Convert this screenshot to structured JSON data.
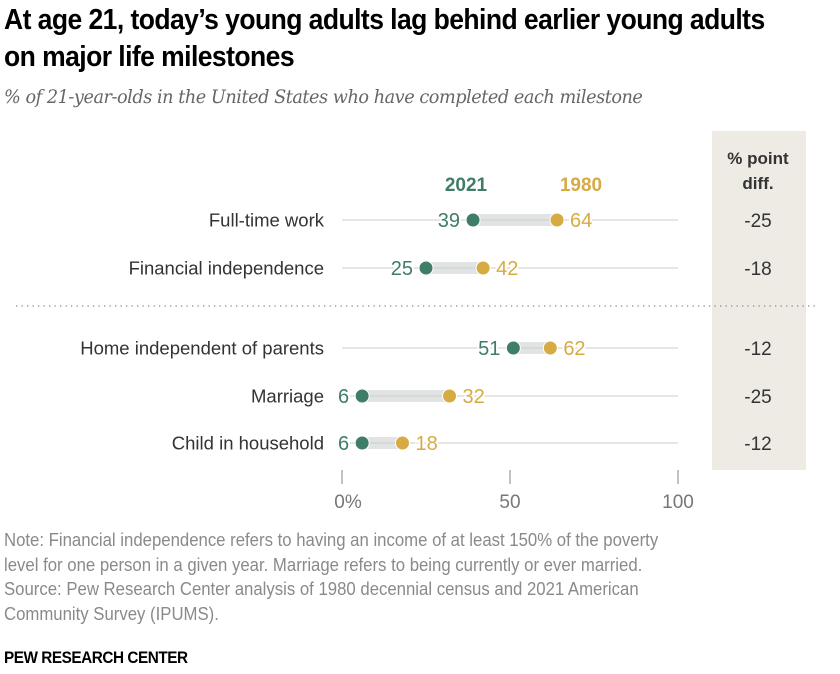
{
  "header": {
    "title": "At age 21, today’s young adults lag behind earlier young adults on major life milestones",
    "subtitle": "% of 21-year-olds in the United States who have completed each milestone"
  },
  "chart_data": {
    "type": "dot-plot",
    "title": "At age 21, today’s young adults lag behind earlier young adults on major life milestones",
    "subtitle": "% of 21-year-olds in the United States who have completed each milestone",
    "xlabel": "",
    "ylabel": "",
    "xlim": [
      0,
      100
    ],
    "x_ticks": [
      0,
      50,
      100
    ],
    "x_tick_labels": [
      "0%",
      "50",
      "100"
    ],
    "categories": [
      "Full-time work",
      "Financial independence",
      "Home independent of parents",
      "Marriage",
      "Child in household"
    ],
    "groups": [
      [
        0,
        1
      ],
      [
        2,
        3,
        4
      ]
    ],
    "series": [
      {
        "name": "2021",
        "color": "#407c6a",
        "values": [
          39,
          25,
          51,
          6,
          6
        ]
      },
      {
        "name": "1980",
        "color": "#d6ab42",
        "values": [
          64,
          42,
          62,
          32,
          18
        ]
      }
    ],
    "diff_column": {
      "header_line1": "% point",
      "header_line2": "diff.",
      "values": [
        "-25",
        "-18",
        "-12",
        "-25",
        "-12"
      ],
      "background": "#eeebe4"
    },
    "legend": "top, above dots"
  },
  "footer": {
    "note_lines": [
      "Note: Financial independence refers to having an income of at least 150% of the poverty",
      "level for one person in a given year. Marriage refers to being currently or ever married.",
      "Source: Pew Research Center analysis of 1980 decennial census and 2021 American",
      "Community Survey (IPUMS)."
    ],
    "brand": "PEW RESEARCH CENTER"
  }
}
